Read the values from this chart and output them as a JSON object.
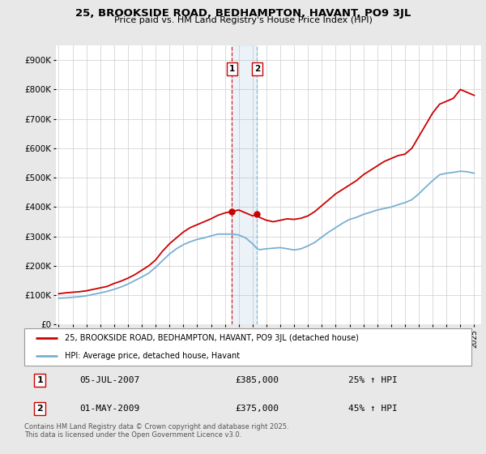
{
  "title": "25, BROOKSIDE ROAD, BEDHAMPTON, HAVANT, PO9 3JL",
  "subtitle": "Price paid vs. HM Land Registry's House Price Index (HPI)",
  "ylabel_ticks": [
    "£0",
    "£100K",
    "£200K",
    "£300K",
    "£400K",
    "£500K",
    "£600K",
    "£700K",
    "£800K",
    "£900K"
  ],
  "ytick_values": [
    0,
    100000,
    200000,
    300000,
    400000,
    500000,
    600000,
    700000,
    800000,
    900000
  ],
  "ylim": [
    0,
    950000
  ],
  "xlim_start": 1994.8,
  "xlim_end": 2025.5,
  "bg_color": "#e8e8e8",
  "plot_bg_color": "#ffffff",
  "red_line_color": "#cc0000",
  "blue_line_color": "#7aafd4",
  "transaction1": {
    "date_label": "05-JUL-2007",
    "price": 385000,
    "pct": "25% ↑ HPI",
    "x": 2007.51
  },
  "transaction2": {
    "date_label": "01-MAY-2009",
    "price": 375000,
    "pct": "45% ↑ HPI",
    "x": 2009.33
  },
  "legend_red_label": "25, BROOKSIDE ROAD, BEDHAMPTON, HAVANT, PO9 3JL (detached house)",
  "legend_blue_label": "HPI: Average price, detached house, Havant",
  "table_row1": [
    "1",
    "05-JUL-2007",
    "£385,000",
    "25% ↑ HPI"
  ],
  "table_row2": [
    "2",
    "01-MAY-2009",
    "£375,000",
    "45% ↑ HPI"
  ],
  "footer": "Contains HM Land Registry data © Crown copyright and database right 2025.\nThis data is licensed under the Open Government Licence v3.0.",
  "red_x": [
    1995.0,
    1995.5,
    1996.0,
    1996.5,
    1997.0,
    1997.5,
    1998.0,
    1998.5,
    1999.0,
    1999.5,
    2000.0,
    2000.5,
    2001.0,
    2001.5,
    2002.0,
    2002.5,
    2003.0,
    2003.5,
    2004.0,
    2004.5,
    2005.0,
    2005.5,
    2006.0,
    2006.5,
    2007.0,
    2007.51,
    2008.0,
    2008.5,
    2009.0,
    2009.33,
    2009.5,
    2010.0,
    2010.5,
    2011.0,
    2011.5,
    2012.0,
    2012.5,
    2013.0,
    2013.5,
    2014.0,
    2014.5,
    2015.0,
    2015.5,
    2016.0,
    2016.5,
    2017.0,
    2017.5,
    2018.0,
    2018.5,
    2019.0,
    2019.5,
    2020.0,
    2020.5,
    2021.0,
    2021.5,
    2022.0,
    2022.5,
    2023.0,
    2023.5,
    2024.0,
    2024.5,
    2025.0
  ],
  "red_y": [
    105000,
    108000,
    110000,
    112000,
    115000,
    120000,
    125000,
    130000,
    140000,
    148000,
    158000,
    170000,
    185000,
    200000,
    220000,
    250000,
    275000,
    295000,
    315000,
    330000,
    340000,
    350000,
    360000,
    372000,
    380000,
    385000,
    390000,
    380000,
    370000,
    375000,
    365000,
    355000,
    350000,
    355000,
    360000,
    358000,
    362000,
    370000,
    385000,
    405000,
    425000,
    445000,
    460000,
    475000,
    490000,
    510000,
    525000,
    540000,
    555000,
    565000,
    575000,
    580000,
    600000,
    640000,
    680000,
    720000,
    750000,
    760000,
    770000,
    800000,
    790000,
    780000
  ],
  "blue_x": [
    1995.0,
    1995.5,
    1996.0,
    1996.5,
    1997.0,
    1997.5,
    1998.0,
    1998.5,
    1999.0,
    1999.5,
    2000.0,
    2000.5,
    2001.0,
    2001.5,
    2002.0,
    2002.5,
    2003.0,
    2003.5,
    2004.0,
    2004.5,
    2005.0,
    2005.5,
    2006.0,
    2006.5,
    2007.0,
    2007.51,
    2008.0,
    2008.5,
    2009.0,
    2009.33,
    2009.5,
    2010.0,
    2010.5,
    2011.0,
    2011.5,
    2012.0,
    2012.5,
    2013.0,
    2013.5,
    2014.0,
    2014.5,
    2015.0,
    2015.5,
    2016.0,
    2016.5,
    2017.0,
    2017.5,
    2018.0,
    2018.5,
    2019.0,
    2019.5,
    2020.0,
    2020.5,
    2021.0,
    2021.5,
    2022.0,
    2022.5,
    2023.0,
    2023.5,
    2024.0,
    2024.5,
    2025.0
  ],
  "blue_y": [
    90000,
    91000,
    93000,
    95000,
    98000,
    103000,
    108000,
    113000,
    120000,
    128000,
    138000,
    150000,
    162000,
    175000,
    195000,
    218000,
    240000,
    258000,
    272000,
    282000,
    290000,
    295000,
    302000,
    308000,
    308000,
    308000,
    305000,
    295000,
    275000,
    258000,
    255000,
    258000,
    260000,
    262000,
    258000,
    254000,
    258000,
    268000,
    280000,
    298000,
    315000,
    330000,
    345000,
    358000,
    365000,
    375000,
    382000,
    390000,
    395000,
    400000,
    408000,
    415000,
    425000,
    445000,
    468000,
    490000,
    510000,
    515000,
    518000,
    522000,
    520000,
    515000
  ]
}
